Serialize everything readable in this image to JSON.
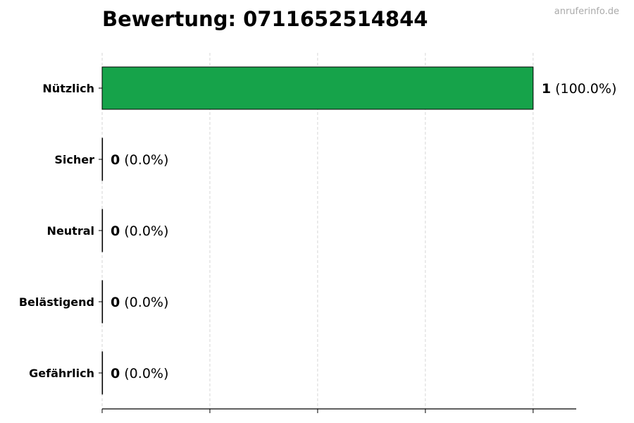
{
  "title": "Bewertung: 0711652514844",
  "watermark": "anruferinfo.de",
  "chart_data": {
    "type": "bar",
    "orientation": "horizontal",
    "categories": [
      "Nützlich",
      "Sicher",
      "Neutral",
      "Belästigend",
      "Gefährlich"
    ],
    "values": [
      1,
      0,
      0,
      0,
      0
    ],
    "percent_labels": [
      "(100.0%)",
      "(0.0%)",
      "(0.0%)",
      "(0.0%)",
      "(0.0%)"
    ],
    "colors": [
      "#16a34a",
      "#16a34a",
      "#16a34a",
      "#16a34a",
      "#16a34a"
    ],
    "xlim": [
      0,
      1.1
    ],
    "xticks": [
      0,
      0.25,
      0.5,
      0.75,
      1.0
    ],
    "xtick_labels_shown": false,
    "grid": "vertical dashed",
    "title": "Bewertung: 0711652514844",
    "xlabel": "",
    "ylabel": ""
  }
}
